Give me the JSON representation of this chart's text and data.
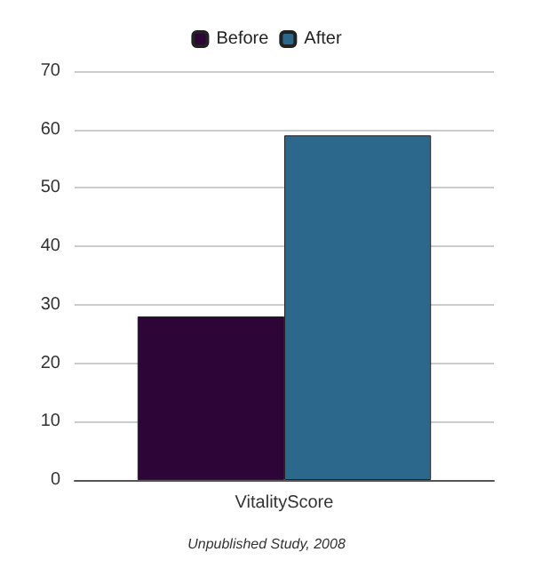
{
  "chart_data": {
    "type": "bar",
    "categories": [
      "VitalityScore"
    ],
    "series": [
      {
        "name": "Before",
        "color": "#2e0537",
        "values": [
          28
        ]
      },
      {
        "name": "After",
        "color": "#2c688c",
        "values": [
          59
        ]
      }
    ],
    "ylim": [
      0,
      70
    ],
    "yticks": [
      0,
      10,
      20,
      30,
      40,
      50,
      60,
      70
    ],
    "grid": "y",
    "legend": "top",
    "annotations": [
      "Unpublished Study, 2008"
    ]
  }
}
